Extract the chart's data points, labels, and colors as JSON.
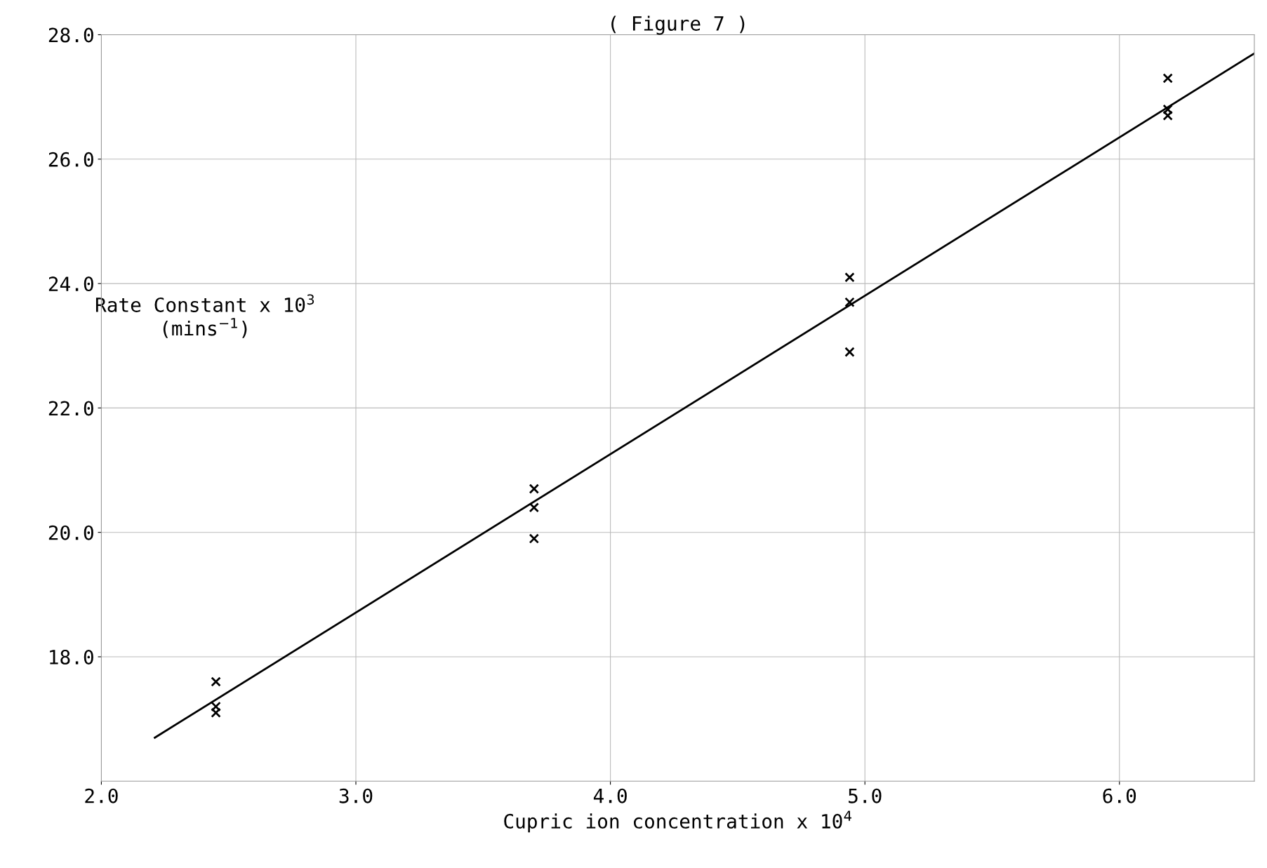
{
  "chart_data": {
    "type": "scatter",
    "title": "( Figure 7 )",
    "xlabel": "Cupric ion concentration x 10$^{4}$",
    "ylabel": "Rate Constant x 10$^{3}$\n(mins$^{−1}$)",
    "xlim": [
      2.0,
      6.53
    ],
    "ylim": [
      16.0,
      28.0
    ],
    "xticks": [
      {
        "value": 2.0,
        "label": "2.0"
      },
      {
        "value": 3.0,
        "label": "3.0"
      },
      {
        "value": 4.0,
        "label": "4.0"
      },
      {
        "value": 5.0,
        "label": "5.0"
      },
      {
        "value": 6.0,
        "label": "6.0"
      }
    ],
    "yticks": [
      {
        "value": 18.0,
        "label": "18.0"
      },
      {
        "value": 20.0,
        "label": "20.0"
      },
      {
        "value": 22.0,
        "label": "22.0"
      },
      {
        "value": 24.0,
        "label": "24.0"
      },
      {
        "value": 26.0,
        "label": "26.0"
      },
      {
        "value": 28.0,
        "label": "28.0"
      }
    ],
    "grid": true,
    "series": [
      {
        "marker": "cross",
        "color": "#000000",
        "x": [
          2.45,
          2.45,
          2.45,
          3.7,
          3.7,
          3.7,
          4.94,
          4.94,
          4.94,
          6.19,
          6.19,
          6.19
        ],
        "values": [
          17.6,
          17.2,
          17.1,
          20.7,
          20.4,
          19.9,
          24.1,
          23.7,
          22.9,
          27.3,
          26.8,
          26.7
        ]
      },
      {
        "type": "line",
        "color": "#000000",
        "x": [
          2.21,
          6.53
        ],
        "values": [
          16.7,
          27.7
        ]
      }
    ]
  }
}
